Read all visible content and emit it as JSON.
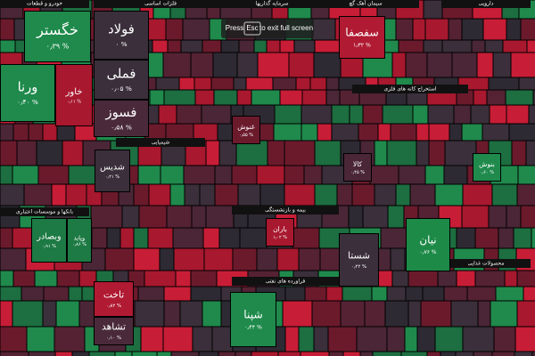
{
  "overlay": {
    "press": "Press",
    "key": "Esc",
    "rest": "to exit full screen"
  },
  "sectors": [
    {
      "label": "خودرو و قطعات"
    },
    {
      "label": "فلزات اساسی"
    },
    {
      "label": "سرمایه گذاریها"
    },
    {
      "label": "سیمان آهک گچ"
    },
    {
      "label": "دارویی"
    },
    {
      "label": "بانکها و موسسات اعتباری"
    },
    {
      "label": "شیمیایی"
    },
    {
      "label": "استخراج کانه های فلزی"
    },
    {
      "label": "بیمه و بازنشستگی"
    },
    {
      "label": "فراورده های نفتی"
    },
    {
      "label": "محصولات غذایی"
    }
  ],
  "tiles": [
    {
      "name": "خگستر",
      "change": "۰٫۳۹ %"
    },
    {
      "name": "فولاد",
      "change": "۰ %"
    },
    {
      "name": "فملی",
      "change": "۰٫۰۵ %"
    },
    {
      "name": "فسوز",
      "change": "۰٫۵۸ %"
    },
    {
      "name": "ورنا",
      "change": "۰٫۴۰ %"
    },
    {
      "name": "خاور",
      "change": "۰٫۱۱ %"
    },
    {
      "name": "شدیس",
      "change": "۰٫۲۱ %"
    },
    {
      "name": "وبصادر",
      "change": "۰٫۹۱ %"
    },
    {
      "name": "وپاید",
      "change": "۰٫۸۶ %"
    },
    {
      "name": "تاخت",
      "change": "۰٫۸۲ %"
    },
    {
      "name": "تشاهد",
      "change": "۰٫۱۰ %"
    },
    {
      "name": "شپنا",
      "change": "۰٫۴۴ %"
    },
    {
      "name": "شستا",
      "change": "۰٫۲۲ %"
    },
    {
      "name": "نیان",
      "change": "۰٫۷۶ %"
    },
    {
      "name": "سفصفا",
      "change": "۱٫۳۲ %"
    },
    {
      "name": "غنوش",
      "change": "۰٫۵۵ %"
    },
    {
      "name": "باران",
      "change": "۱٫۰۲ %"
    },
    {
      "name": "کالا",
      "change": "۰٫۴۵ %"
    },
    {
      "name": "بنوش",
      "change": "۰٫۶۰ %"
    }
  ]
}
